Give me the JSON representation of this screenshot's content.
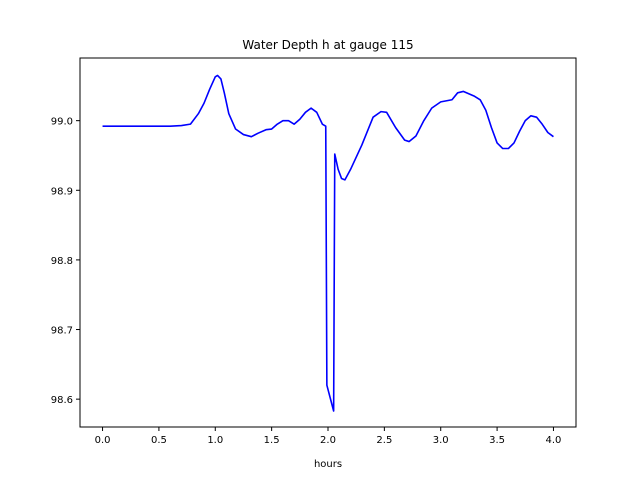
{
  "chart_data": {
    "type": "line",
    "title": "Water Depth h at gauge 115",
    "xlabel": "hours",
    "ylabel": "",
    "xlim": [
      -0.2,
      4.2
    ],
    "ylim": [
      98.56,
      99.09
    ],
    "xticks": [
      0.0,
      0.5,
      1.0,
      1.5,
      2.0,
      2.5,
      3.0,
      3.5,
      4.0
    ],
    "xtick_labels": [
      "0.0",
      "0.5",
      "1.0",
      "1.5",
      "2.0",
      "2.5",
      "3.0",
      "3.5",
      "4.0"
    ],
    "yticks": [
      98.6,
      98.7,
      98.8,
      98.9,
      99.0
    ],
    "ytick_labels": [
      "98.6",
      "98.7",
      "98.8",
      "98.9",
      "99.0"
    ],
    "grid": false,
    "legend": "none",
    "series": [
      {
        "color": "#0000ff",
        "x": [
          0.0,
          0.2,
          0.4,
          0.6,
          0.7,
          0.78,
          0.85,
          0.9,
          0.95,
          1.0,
          1.02,
          1.05,
          1.08,
          1.12,
          1.18,
          1.25,
          1.32,
          1.38,
          1.45,
          1.5,
          1.55,
          1.6,
          1.65,
          1.7,
          1.75,
          1.8,
          1.85,
          1.9,
          1.95,
          1.98,
          1.99,
          2.05,
          2.06,
          2.09,
          2.12,
          2.15,
          2.2,
          2.3,
          2.4,
          2.47,
          2.52,
          2.6,
          2.68,
          2.72,
          2.78,
          2.85,
          2.92,
          3.0,
          3.1,
          3.15,
          3.2,
          3.3,
          3.35,
          3.4,
          3.45,
          3.5,
          3.55,
          3.6,
          3.65,
          3.7,
          3.75,
          3.8,
          3.85,
          3.9,
          3.95,
          4.0
        ],
        "y": [
          98.992,
          98.992,
          98.992,
          98.992,
          98.993,
          98.995,
          99.01,
          99.025,
          99.045,
          99.063,
          99.065,
          99.06,
          99.04,
          99.01,
          98.988,
          98.98,
          98.977,
          98.982,
          98.987,
          98.988,
          98.995,
          99.0,
          99.0,
          98.995,
          99.002,
          99.012,
          99.018,
          99.012,
          98.995,
          98.992,
          98.62,
          98.583,
          98.952,
          98.93,
          98.917,
          98.915,
          98.93,
          98.965,
          99.005,
          99.013,
          99.012,
          98.99,
          98.972,
          98.97,
          98.978,
          99.0,
          99.018,
          99.027,
          99.03,
          99.04,
          99.042,
          99.035,
          99.03,
          99.015,
          98.99,
          98.968,
          98.96,
          98.96,
          98.968,
          98.985,
          99.0,
          99.007,
          99.005,
          98.995,
          98.983,
          98.977
        ]
      }
    ]
  }
}
